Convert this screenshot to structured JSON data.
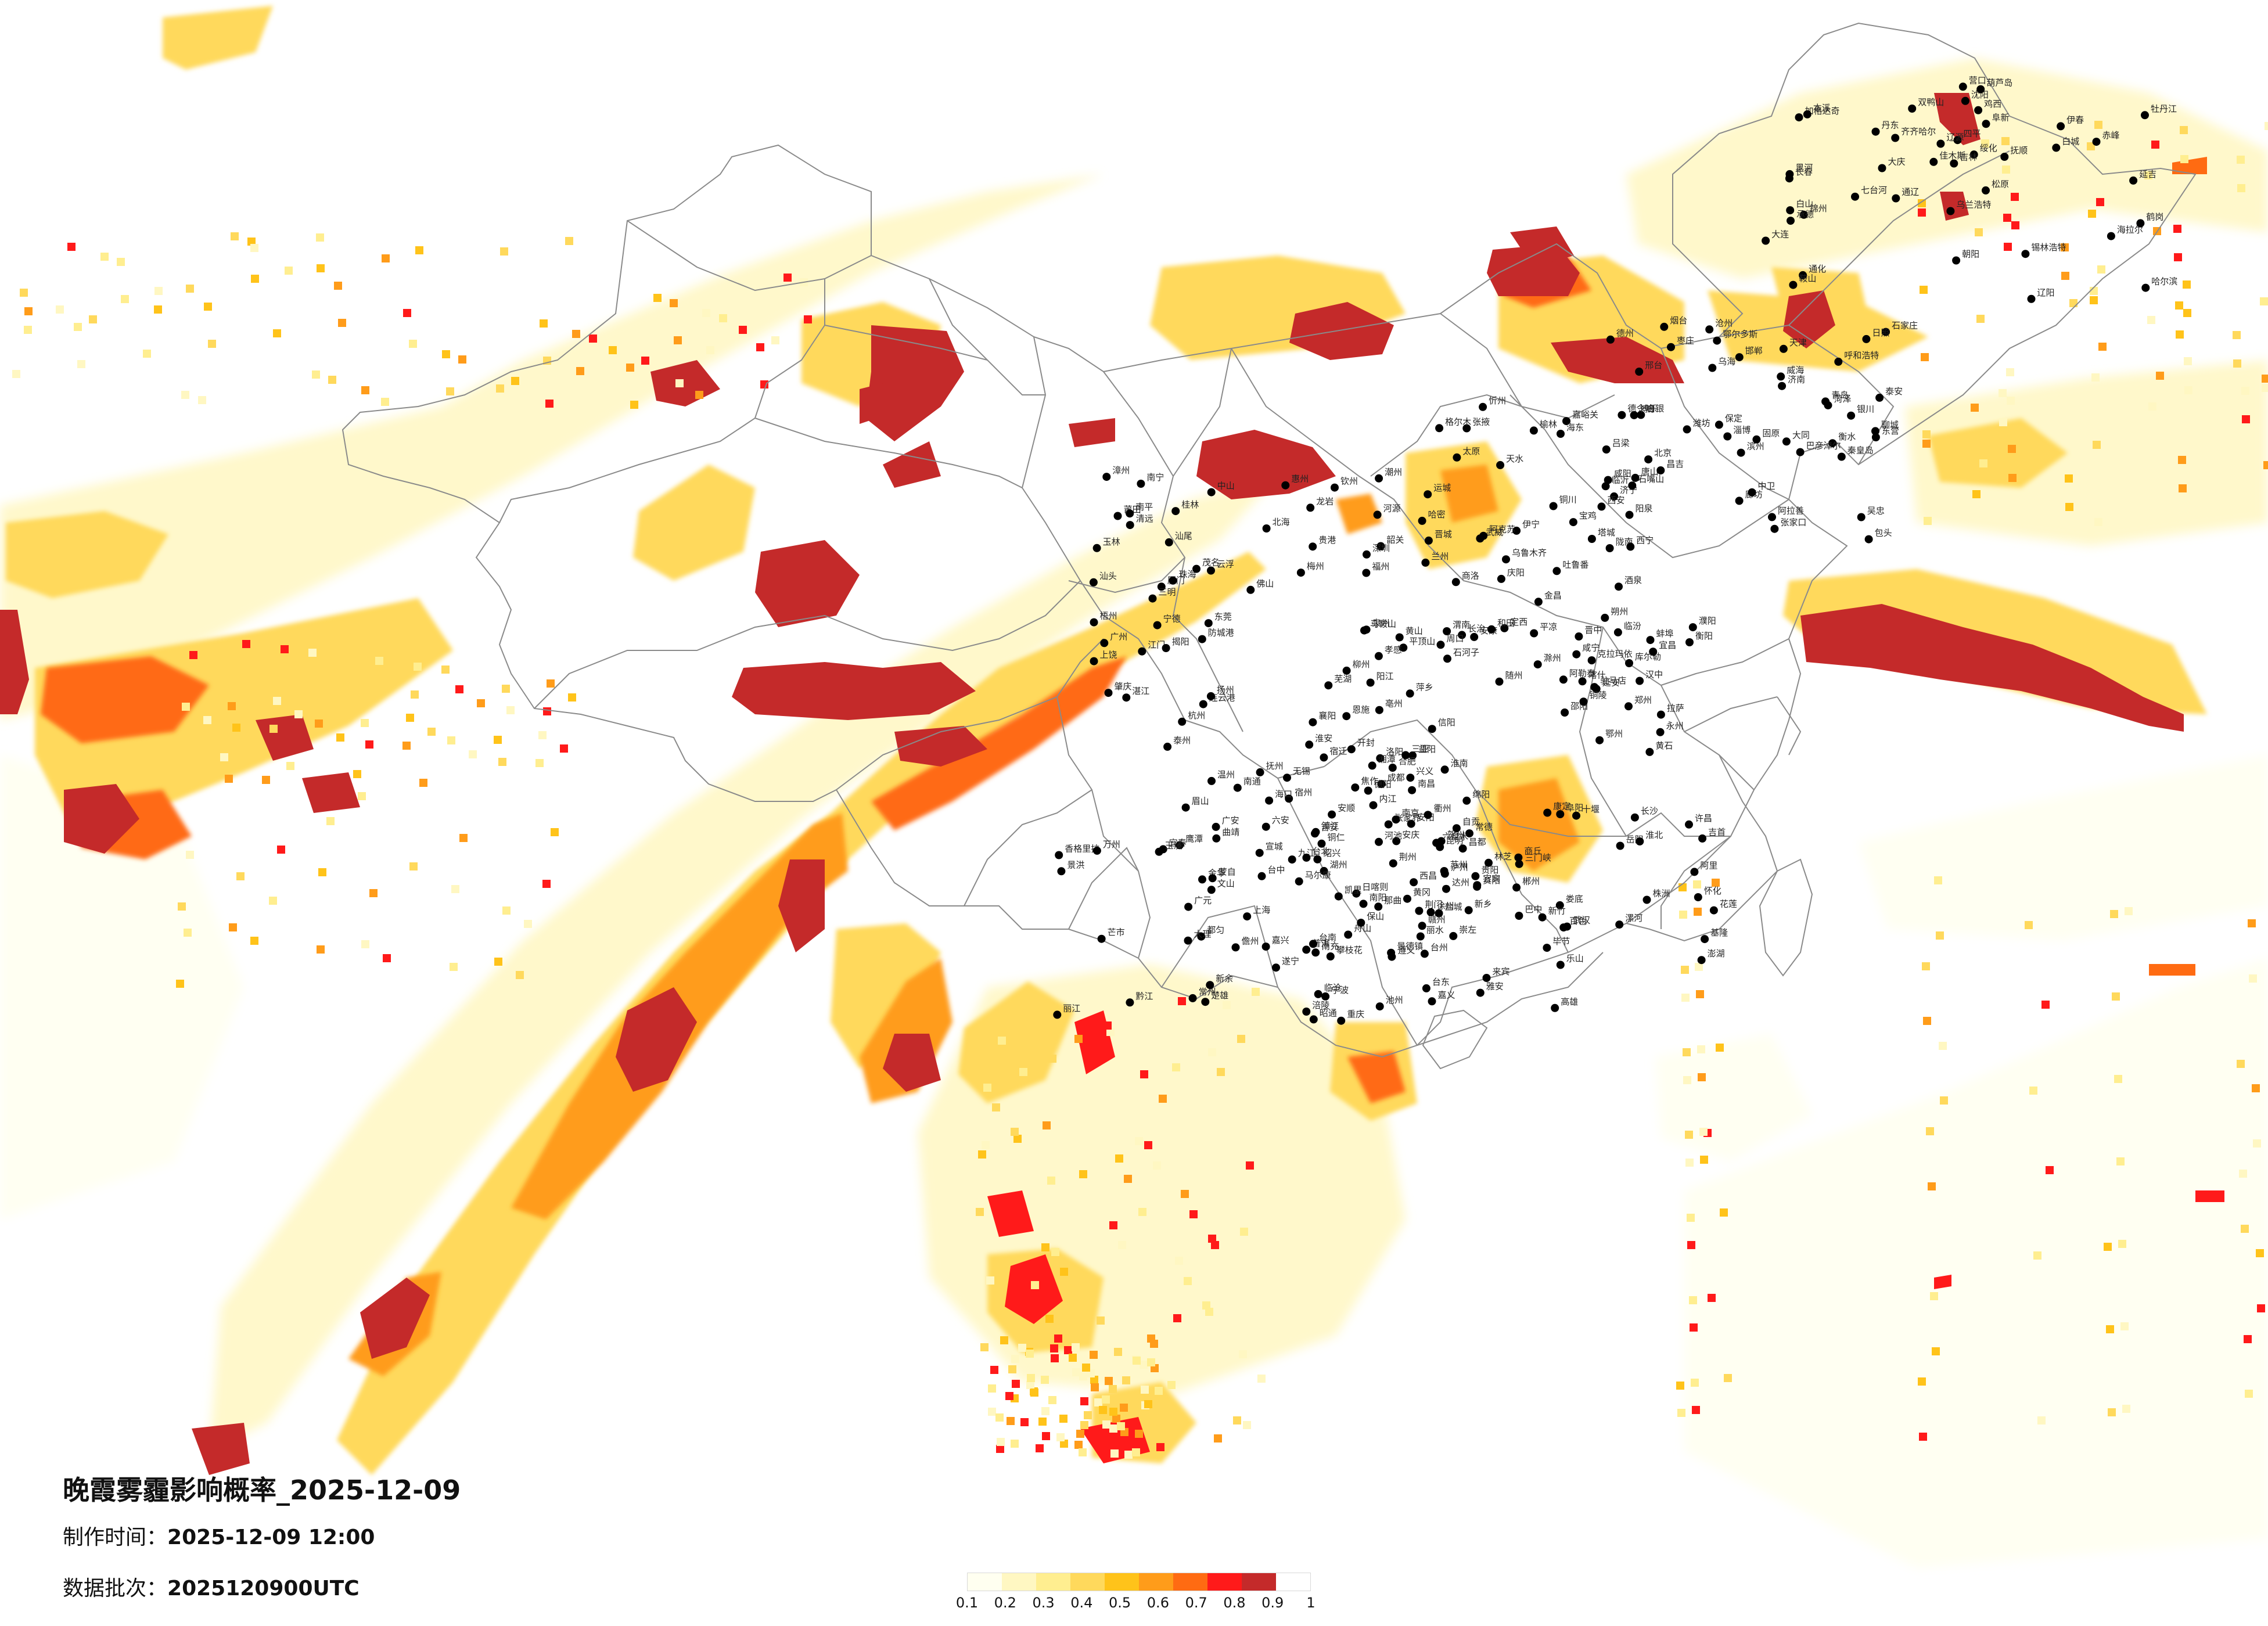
{
  "title": "晚霞雾霾影响概率_2025-12-09",
  "made_time": {
    "label": "制作时间：",
    "value": "2025-12-09 12:00"
  },
  "batch": {
    "label": "数据批次：",
    "value": "2025120900UTC"
  },
  "colorbar": {
    "colors": [
      "#fffff0",
      "#fff7c2",
      "#ffee90",
      "#ffd95c",
      "#ffc31a",
      "#ff9c1a",
      "#ff6b12",
      "#ff1a1a",
      "#c42a2a"
    ],
    "ticks": [
      "0.1",
      "0.2",
      "0.3",
      "0.4",
      "0.5",
      "0.6",
      "0.7",
      "0.8",
      "0.9",
      "1"
    ]
  },
  "cities": [
    "加格达奇",
    "黑河",
    "海拉尔",
    "伊春",
    "鹤岗",
    "佳木斯",
    "双鸭山",
    "七台河",
    "鸡西",
    "齐齐哈尔",
    "大庆",
    "绥化",
    "哈尔滨",
    "乌兰浩特",
    "白城",
    "松原",
    "长春",
    "吉林",
    "四平",
    "辽源",
    "通化",
    "白山",
    "延吉",
    "牡丹江",
    "锡林浩特",
    "赤峰",
    "通辽",
    "阜新",
    "沈阳",
    "抚顺",
    "本溪",
    "丹东",
    "鞍山",
    "辽阳",
    "营口",
    "锦州",
    "葫芦岛",
    "朝阳",
    "大连",
    "承德",
    "张家口",
    "北京",
    "天津",
    "唐山",
    "秦皇岛",
    "廊坊",
    "保定",
    "沧州",
    "石家庄",
    "衡水",
    "邢台",
    "邯郸",
    "济南",
    "淄博",
    "潍坊",
    "烟台",
    "威海",
    "青岛",
    "日照",
    "临沂",
    "枣庄",
    "济宁",
    "泰安",
    "德州",
    "聊城",
    "菏泽",
    "滨州",
    "东营",
    "呼和浩特",
    "包头",
    "乌海",
    "鄂尔多斯",
    "巴彦淖尔",
    "阿拉善",
    "银川",
    "石嘴山",
    "吴忠",
    "固原",
    "中卫",
    "大同",
    "朔州",
    "忻州",
    "太原",
    "阳泉",
    "晋中",
    "吕梁",
    "长治",
    "晋城",
    "临汾",
    "运城",
    "西安",
    "宝鸡",
    "咸阳",
    "渭南",
    "铜川",
    "延安",
    "榆林",
    "汉中",
    "安康",
    "商洛",
    "兰州",
    "嘉峪关",
    "金昌",
    "武威",
    "张掖",
    "酒泉",
    "白银",
    "天水",
    "平凉",
    "庆阳",
    "定西",
    "陇南",
    "西宁",
    "海东",
    "格尔木",
    "德令哈",
    "乌鲁木齐",
    "克拉玛依",
    "吐鲁番",
    "哈密",
    "昌吉",
    "伊宁",
    "博乐",
    "阿克苏",
    "喀什",
    "和田",
    "库尔勒",
    "塔城",
    "阿勒泰",
    "石河子",
    "拉萨",
    "日喀则",
    "昌都",
    "林芝",
    "那曲",
    "阿里",
    "郑州",
    "开封",
    "洛阳",
    "平顶山",
    "安阳",
    "新乡",
    "焦作",
    "濮阳",
    "许昌",
    "漯河",
    "三门峡",
    "南阳",
    "商丘",
    "信阳",
    "周口",
    "驻马店",
    "武汉",
    "黄石",
    "十堰",
    "宜昌",
    "襄阳",
    "鄂州",
    "荆门",
    "孝感",
    "荆州",
    "黄冈",
    "咸宁",
    "随州",
    "恩施",
    "长沙",
    "株洲",
    "湘潭",
    "衡阳",
    "邵阳",
    "岳阳",
    "常德",
    "张家界",
    "益阳",
    "郴州",
    "永州",
    "怀化",
    "娄底",
    "吉首",
    "合肥",
    "芜湖",
    "蚌埠",
    "淮南",
    "马鞍山",
    "淮北",
    "铜陵",
    "安庆",
    "黄山",
    "滁州",
    "阜阳",
    "宿州",
    "六安",
    "亳州",
    "池州",
    "宣城",
    "南京",
    "无锡",
    "徐州",
    "常州",
    "苏州",
    "南通",
    "连云港",
    "淮安",
    "盐城",
    "扬州",
    "镇江",
    "泰州",
    "宿迁",
    "上海",
    "杭州",
    "宁波",
    "温州",
    "嘉兴",
    "湖州",
    "绍兴",
    "金华",
    "衢州",
    "舟山",
    "台州",
    "丽水",
    "南昌",
    "景德镇",
    "萍乡",
    "九江",
    "新余",
    "鹰潭",
    "赣州",
    "吉安",
    "宜春",
    "抚州",
    "上饶",
    "福州",
    "厦门",
    "莆田",
    "三明",
    "泉州",
    "漳州",
    "南平",
    "龙岩",
    "宁德",
    "广州",
    "韶关",
    "深圳",
    "珠海",
    "汕头",
    "佛山",
    "江门",
    "湛江",
    "茂名",
    "肇庆",
    "惠州",
    "梅州",
    "汕尾",
    "河源",
    "阳江",
    "清远",
    "东莞",
    "中山",
    "潮州",
    "揭阳",
    "云浮",
    "南宁",
    "柳州",
    "桂林",
    "梧州",
    "北海",
    "防城港",
    "钦州",
    "贵港",
    "玉林",
    "百色",
    "贺州",
    "河池",
    "来宾",
    "崇左",
    "海口",
    "三亚",
    "儋州",
    "成都",
    "自贡",
    "攀枝花",
    "泸州",
    "德阳",
    "绵阳",
    "广元",
    "遂宁",
    "内江",
    "乐山",
    "南充",
    "眉山",
    "宜宾",
    "广安",
    "达州",
    "雅安",
    "巴中",
    "资阳",
    "马尔康",
    "康定",
    "西昌",
    "贵阳",
    "六盘水",
    "遵义",
    "安顺",
    "铜仁",
    "毕节",
    "兴义",
    "凯里",
    "都匀",
    "昆明",
    "曲靖",
    "玉溪",
    "保山",
    "昭通",
    "丽江",
    "普洱",
    "临沧",
    "楚雄",
    "蒙自",
    "文山",
    "景洪",
    "大理",
    "芒市",
    "香格里拉",
    "重庆",
    "万州",
    "涪陵",
    "黔江",
    "台北",
    "台中",
    "台南",
    "高雄",
    "花莲",
    "基隆",
    "新竹",
    "嘉义",
    "澎湖",
    "台东"
  ]
}
